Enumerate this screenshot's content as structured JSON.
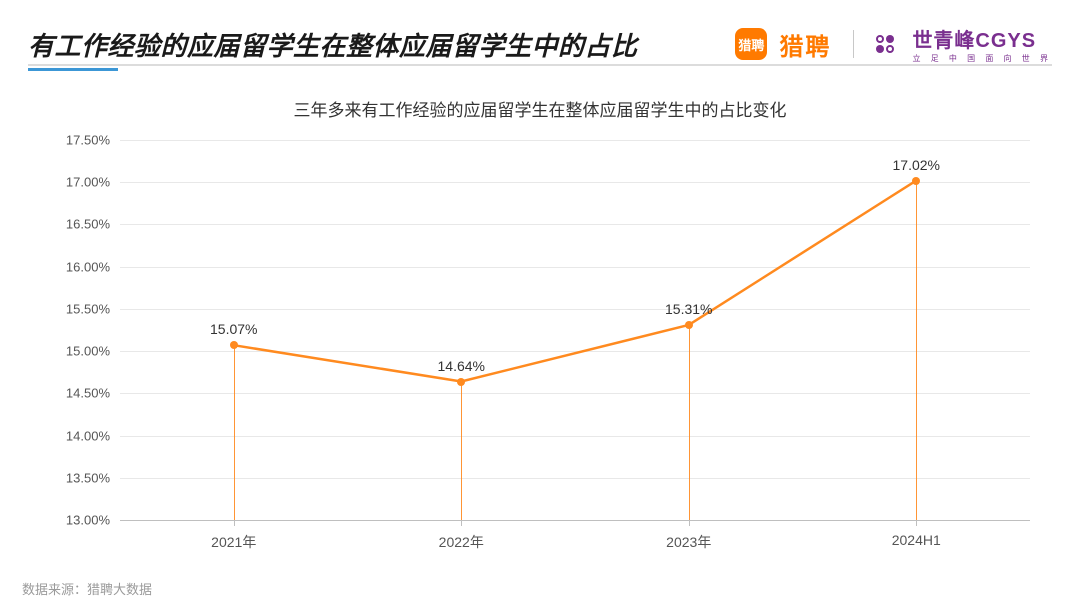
{
  "header": {
    "title": "有工作经验的应届留学生在整体应届留学生中的占比",
    "liepin_badge": "猎聘",
    "liepin_text": "猎聘",
    "cgys_main": "世青峰CGYS",
    "cgys_sub": "立 足 中 国   面 向 世 界"
  },
  "chart": {
    "type": "line",
    "title": "三年多来有工作经验的应届留学生在整体应届留学生中的占比变化",
    "categories": [
      "2021年",
      "2022年",
      "2023年",
      "2024H1"
    ],
    "values": [
      15.07,
      14.64,
      15.31,
      17.02
    ],
    "value_labels": [
      "15.07%",
      "14.64%",
      "15.31%",
      "17.02%"
    ],
    "ylim": [
      13.0,
      17.5
    ],
    "ytick_step": 0.5,
    "ytick_labels": [
      "13.00%",
      "13.50%",
      "14.00%",
      "14.50%",
      "15.00%",
      "15.50%",
      "16.00%",
      "16.50%",
      "17.00%",
      "17.50%"
    ],
    "line_color": "#ff8a1f",
    "line_width": 2.5,
    "marker_color": "#ff8a1f",
    "marker_size": 8,
    "grid_color": "#e8e8e8",
    "axis_color": "#bfbfbf",
    "background_color": "#ffffff",
    "label_fontsize": 14,
    "title_fontsize": 17
  },
  "footer": {
    "source": "数据来源：猎聘大数据"
  },
  "colors": {
    "accent_orange": "#ff8a1f",
    "accent_blue": "#3c97d6",
    "cgys_purple": "#7a2f8f",
    "text_dark": "#1a1a1a"
  }
}
